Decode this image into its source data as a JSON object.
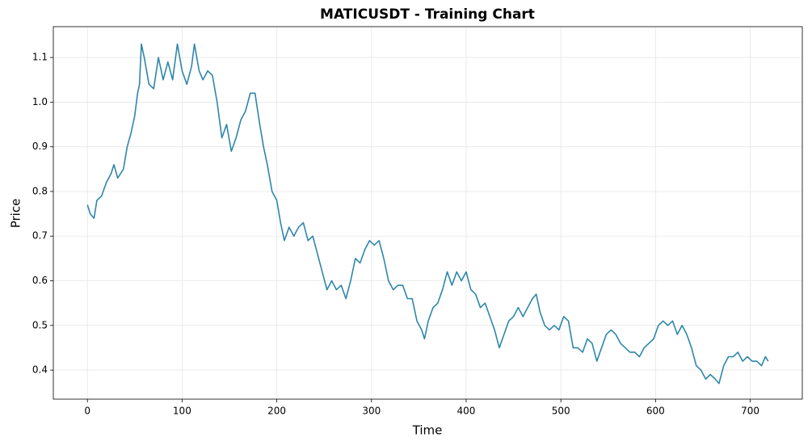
{
  "chart_data": {
    "type": "line",
    "title": "MATICUSDT - Training Chart",
    "x_label": "Time",
    "y_label": "Price",
    "x": [
      0,
      3,
      7,
      10,
      15,
      20,
      25,
      28,
      32,
      38,
      42,
      46,
      50,
      53,
      55,
      57,
      60,
      65,
      70,
      75,
      80,
      85,
      90,
      95,
      100,
      105,
      110,
      113,
      118,
      122,
      127,
      132,
      137,
      142,
      147,
      152,
      157,
      162,
      167,
      172,
      177,
      182,
      186,
      190,
      195,
      200,
      204,
      208,
      213,
      218,
      223,
      228,
      233,
      238,
      243,
      248,
      253,
      258,
      263,
      268,
      273,
      278,
      283,
      288,
      293,
      298,
      303,
      308,
      313,
      318,
      323,
      328,
      333,
      338,
      343,
      348,
      353,
      356,
      360,
      365,
      370,
      375,
      380,
      385,
      390,
      395,
      400,
      405,
      410,
      415,
      420,
      425,
      430,
      435,
      440,
      445,
      450,
      455,
      460,
      465,
      470,
      474,
      478,
      483,
      488,
      493,
      498,
      503,
      508,
      513,
      518,
      523,
      528,
      533,
      538,
      543,
      548,
      553,
      558,
      563,
      568,
      573,
      578,
      583,
      588,
      593,
      598,
      603,
      608,
      613,
      618,
      623,
      628,
      633,
      638,
      643,
      648,
      653,
      658,
      663,
      667,
      672,
      677,
      682,
      687,
      692,
      697,
      702,
      707,
      712,
      716,
      719
    ],
    "series": [
      {
        "name": "Price",
        "color": "#2e86ab",
        "values": [
          0.77,
          0.75,
          0.74,
          0.78,
          0.79,
          0.82,
          0.84,
          0.86,
          0.83,
          0.85,
          0.9,
          0.93,
          0.97,
          1.02,
          1.04,
          1.13,
          1.1,
          1.04,
          1.03,
          1.1,
          1.05,
          1.09,
          1.05,
          1.13,
          1.07,
          1.04,
          1.08,
          1.13,
          1.07,
          1.05,
          1.07,
          1.06,
          1.0,
          0.92,
          0.95,
          0.89,
          0.92,
          0.96,
          0.98,
          1.02,
          1.02,
          0.95,
          0.9,
          0.86,
          0.8,
          0.78,
          0.73,
          0.69,
          0.72,
          0.7,
          0.72,
          0.73,
          0.69,
          0.7,
          0.66,
          0.62,
          0.58,
          0.6,
          0.58,
          0.59,
          0.56,
          0.6,
          0.65,
          0.64,
          0.67,
          0.69,
          0.68,
          0.69,
          0.65,
          0.6,
          0.58,
          0.59,
          0.59,
          0.56,
          0.56,
          0.51,
          0.49,
          0.47,
          0.51,
          0.54,
          0.55,
          0.58,
          0.62,
          0.59,
          0.62,
          0.6,
          0.62,
          0.58,
          0.57,
          0.54,
          0.55,
          0.52,
          0.49,
          0.45,
          0.48,
          0.51,
          0.52,
          0.54,
          0.52,
          0.54,
          0.56,
          0.57,
          0.53,
          0.5,
          0.49,
          0.5,
          0.49,
          0.52,
          0.51,
          0.45,
          0.45,
          0.44,
          0.47,
          0.46,
          0.42,
          0.45,
          0.48,
          0.49,
          0.48,
          0.46,
          0.45,
          0.44,
          0.44,
          0.43,
          0.45,
          0.46,
          0.47,
          0.5,
          0.51,
          0.5,
          0.51,
          0.48,
          0.5,
          0.48,
          0.45,
          0.41,
          0.4,
          0.38,
          0.39,
          0.38,
          0.37,
          0.41,
          0.43,
          0.43,
          0.44,
          0.42,
          0.43,
          0.42,
          0.42,
          0.41,
          0.43,
          0.42
        ]
      }
    ],
    "xlim": [
      -36,
      755
    ],
    "ylim": [
      0.335,
      1.169
    ],
    "xticks": [
      0,
      100,
      200,
      300,
      400,
      500,
      600,
      700
    ],
    "yticks": [
      0.4,
      0.5,
      0.6,
      0.7,
      0.8,
      0.9,
      {
        "value": 1,
        "label": "1.0"
      },
      1.1
    ],
    "grid": true
  }
}
